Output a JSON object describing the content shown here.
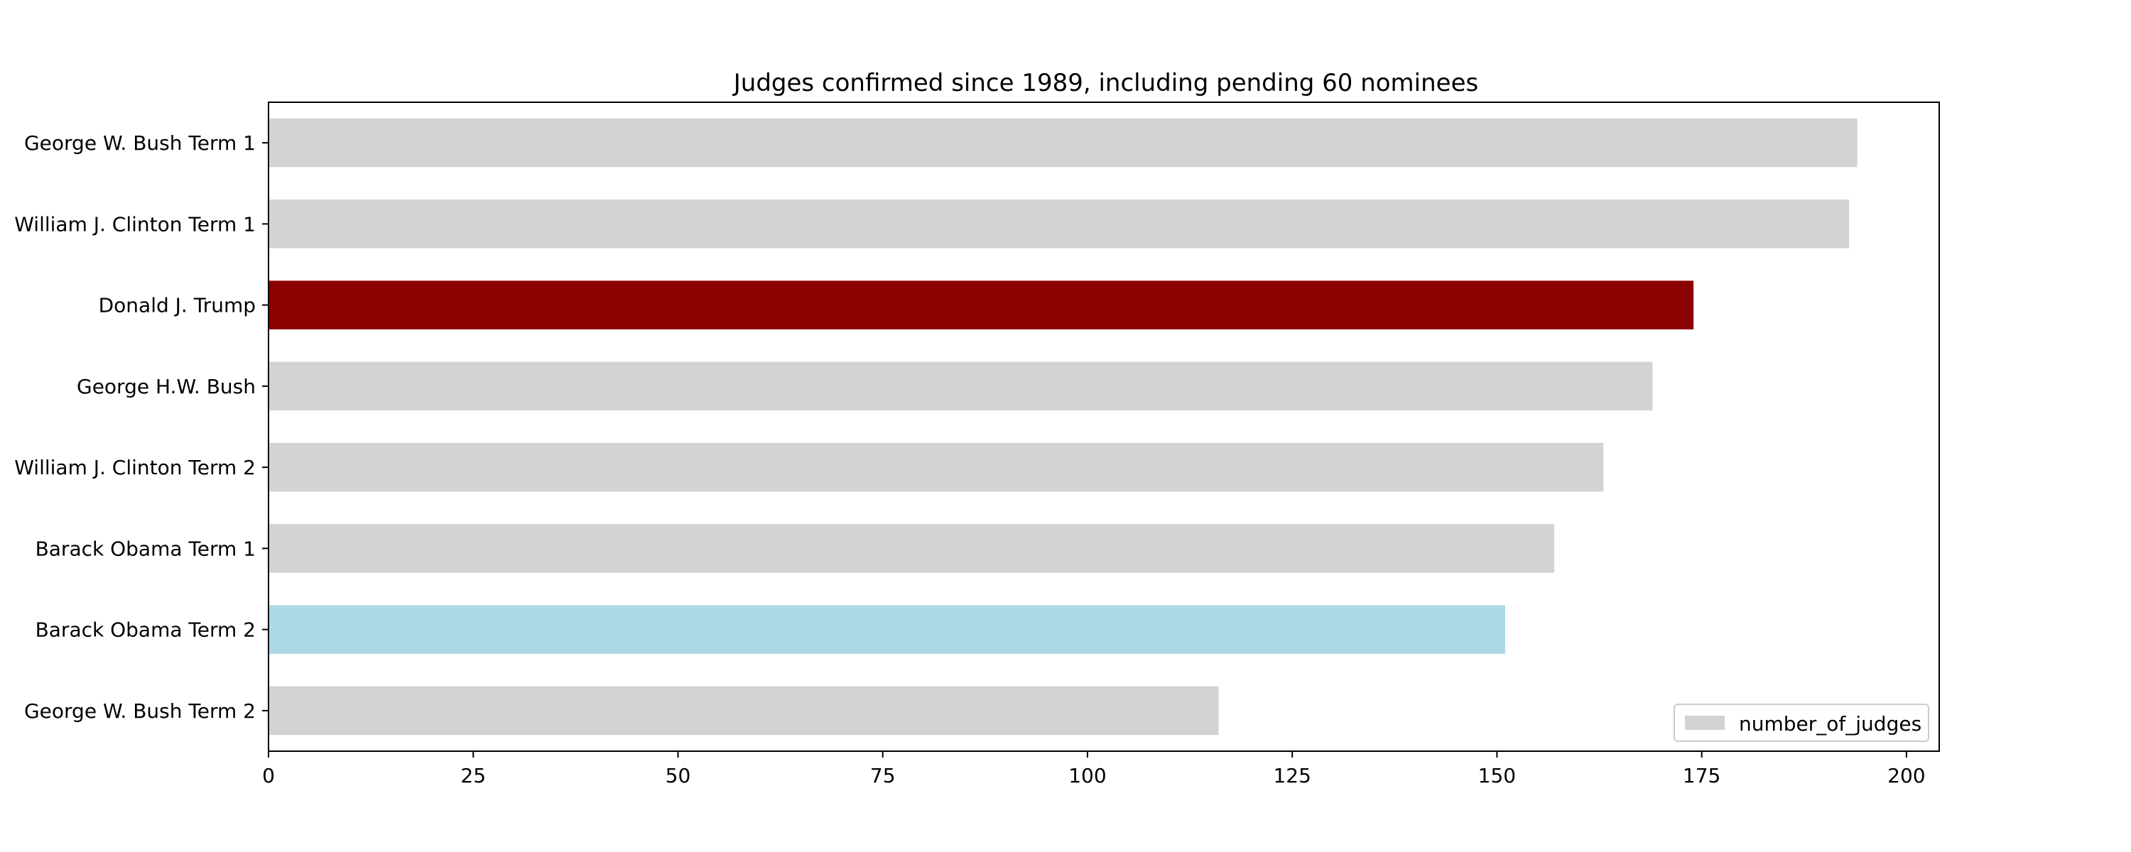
{
  "chart_data": {
    "type": "bar",
    "orientation": "horizontal",
    "title": "Judges confirmed since 1989, including pending 60 nominees",
    "xlabel": "",
    "ylabel": "",
    "categories": [
      "George W. Bush Term 1",
      "William J. Clinton Term 1",
      "Donald J. Trump",
      "George H.W. Bush",
      "William J. Clinton Term 2",
      "Barack Obama Term 1",
      "Barack Obama Term 2",
      "George W. Bush Term 2"
    ],
    "series": [
      {
        "name": "number_of_judges",
        "values": [
          194,
          193,
          174,
          169,
          163,
          157,
          151,
          116
        ]
      }
    ],
    "bar_colors": [
      "#d3d3d3",
      "#d3d3d3",
      "#8b0000",
      "#d3d3d3",
      "#d3d3d3",
      "#d3d3d3",
      "#add8e6",
      "#d3d3d3"
    ],
    "xlim": [
      0,
      204
    ],
    "xticks": [
      "0",
      "25",
      "50",
      "75",
      "100",
      "125",
      "150",
      "175",
      "200"
    ],
    "xtick_values": [
      0,
      25,
      50,
      75,
      100,
      125,
      150,
      175,
      200
    ],
    "grid": false,
    "legend": {
      "entry": "number_of_judges",
      "color": "#d3d3d3",
      "position": "lower-right"
    }
  }
}
